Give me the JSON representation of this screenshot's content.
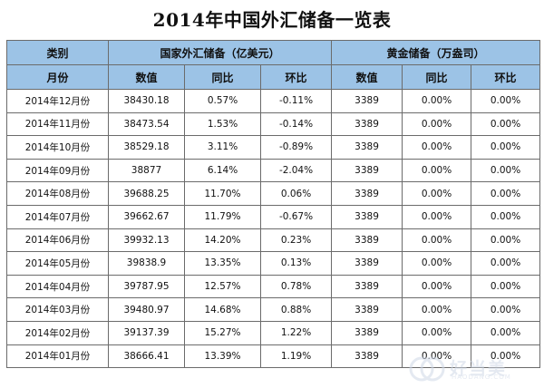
{
  "title": "2014年中国外汇储备一览表",
  "header1": {
    "category": "类别",
    "forex_group": "国家外汇储备（亿美元）",
    "gold_group": "黄金储备（万盎司）"
  },
  "header2": [
    "月份",
    "数值",
    "同比",
    "环比",
    "数值",
    "同比",
    "环比"
  ],
  "rows": [
    [
      "2014年12月份",
      "38430.18",
      "0.57%",
      "-0.11%",
      "3389",
      "0.00%",
      "0.00%"
    ],
    [
      "2014年11月份",
      "38473.54",
      "1.53%",
      "-0.14%",
      "3389",
      "0.00%",
      "0.00%"
    ],
    [
      "2014年10月份",
      "38529.18",
      "3.11%",
      "-0.89%",
      "3389",
      "0.00%",
      "0.00%"
    ],
    [
      "2014年09月份",
      "38877",
      "6.14%",
      "-2.04%",
      "3389",
      "0.00%",
      "0.00%"
    ],
    [
      "2014年08月份",
      "39688.25",
      "11.70%",
      "0.06%",
      "3389",
      "0.00%",
      "0.00%"
    ],
    [
      "2014年07月份",
      "39662.67",
      "11.79%",
      "-0.67%",
      "3389",
      "0.00%",
      "0.00%"
    ],
    [
      "2014年06月份",
      "39932.13",
      "14.20%",
      "0.23%",
      "3389",
      "0.00%",
      "0.00%"
    ],
    [
      "2014年05月份",
      "39838.9",
      "13.35%",
      "0.13%",
      "3389",
      "0.00%",
      "0.00%"
    ],
    [
      "2014年04月份",
      "39787.95",
      "12.57%",
      "0.78%",
      "3389",
      "0.00%",
      "0.00%"
    ],
    [
      "2014年03月份",
      "39480.97",
      "14.68%",
      "0.88%",
      "3389",
      "0.00%",
      "0.00%"
    ],
    [
      "2014年02月份",
      "39137.39",
      "15.27%",
      "1.22%",
      "3389",
      "0.00%",
      "0.00%"
    ],
    [
      "2014年01月份",
      "38666.41",
      "13.39%",
      "1.19%",
      "3389",
      "0.00%",
      "0.00%"
    ]
  ],
  "watermark": {
    "text": "好当美",
    "sub": "HAODANG.COM",
    "icon": "watermark-logo-icon"
  },
  "colors": {
    "header_bg": "#9cc3e6",
    "border": "#6b6b6b",
    "watermark": "#cfd8e6"
  }
}
